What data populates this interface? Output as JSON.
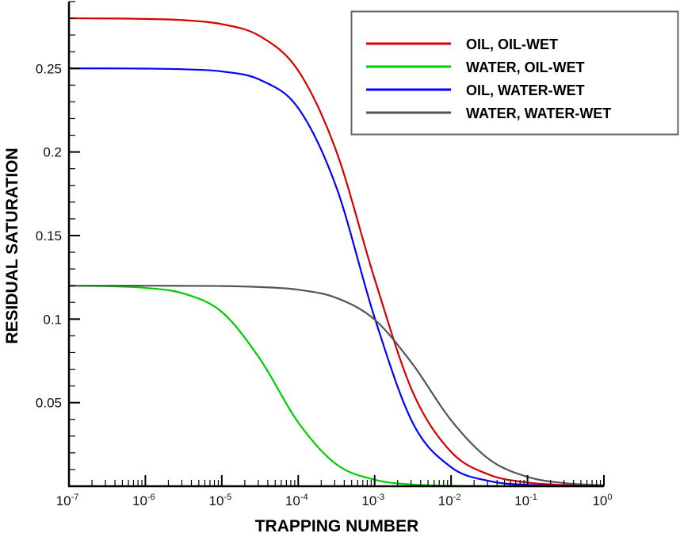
{
  "chart_data": {
    "type": "line",
    "title": "",
    "xlabel": "TRAPPING NUMBER",
    "ylabel": "RESIDUAL SATURATION",
    "xscale": "log",
    "xlim": [
      1e-07,
      1
    ],
    "ylim": [
      0,
      0.29
    ],
    "x_ticks": [
      {
        "base": "10",
        "exp": "-7"
      },
      {
        "base": "10",
        "exp": "-6"
      },
      {
        "base": "10",
        "exp": "-5"
      },
      {
        "base": "10",
        "exp": "-4"
      },
      {
        "base": "10",
        "exp": "-3"
      },
      {
        "base": "10",
        "exp": "-2"
      },
      {
        "base": "10",
        "exp": "-1"
      },
      {
        "base": "10",
        "exp": "0"
      }
    ],
    "y_ticks": [
      "0.05",
      "0.1",
      "0.15",
      "0.2",
      "0.25"
    ],
    "y_tick_values": [
      0.05,
      0.1,
      0.15,
      0.2,
      0.25
    ],
    "grid": false,
    "legend_placement": "top-right",
    "x": [
      1e-07,
      3.16e-07,
      1e-06,
      3.16e-06,
      1e-05,
      3.16e-05,
      0.0001,
      0.000316,
      0.001,
      0.00316,
      0.01,
      0.0316,
      0.1,
      0.316,
      1
    ],
    "series": [
      {
        "name": "OIL, OIL-WET",
        "color": "#d40000",
        "values": [
          0.28,
          0.2799,
          0.2796,
          0.2789,
          0.2765,
          0.2693,
          0.2487,
          0.2003,
          0.124,
          0.0562,
          0.0206,
          0.0069,
          0.0022,
          0.0007,
          0.0002
        ]
      },
      {
        "name": "WATER, OIL-WET",
        "color": "#00cc00",
        "values": [
          0.1199,
          0.1197,
          0.1187,
          0.1153,
          0.1043,
          0.0762,
          0.0382,
          0.0131,
          0.0039,
          0.001,
          0.0003,
          0.0001,
          0,
          0,
          0
        ]
      },
      {
        "name": "OIL, WATER-WET",
        "color": "#0000ff",
        "values": [
          0.25,
          0.25,
          0.2499,
          0.2495,
          0.2482,
          0.2432,
          0.2263,
          0.1788,
          0.1008,
          0.0378,
          0.0114,
          0.0031,
          0.0008,
          0.0002,
          0.0001
        ]
      },
      {
        "name": "WATER, WATER-WET",
        "color": "#555555",
        "values": [
          0.12,
          0.12,
          0.12,
          0.1199,
          0.1198,
          0.1192,
          0.1176,
          0.1127,
          0.0997,
          0.0729,
          0.0395,
          0.0161,
          0.0056,
          0.0018,
          0.0006
        ]
      }
    ]
  }
}
